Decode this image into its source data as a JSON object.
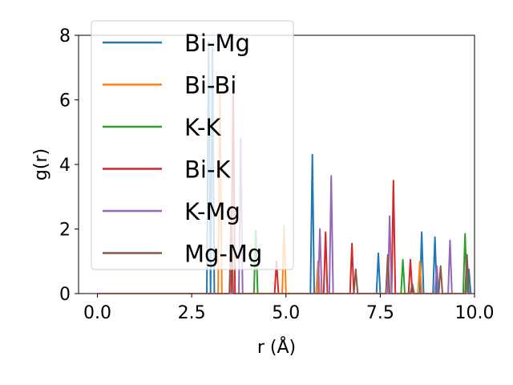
{
  "chart_data": {
    "type": "line",
    "xlabel": "r (Å)",
    "ylabel": "g(r)",
    "xlim": [
      -0.5,
      10.0
    ],
    "ylim": [
      0,
      8.0
    ],
    "xticks": [
      "0.0",
      "2.5",
      "5.0",
      "7.5",
      "10.0"
    ],
    "xtick_values": [
      0,
      2.5,
      5.0,
      7.5,
      10.0
    ],
    "yticks": [
      "0",
      "2",
      "4",
      "6",
      "8"
    ],
    "ytick_values": [
      0,
      2,
      4,
      6,
      8
    ],
    "grid": false,
    "legend_position": "top-left",
    "series": [
      {
        "name": "Bi-Mg",
        "color": "#1f77b4",
        "peaks": [
          [
            2.95,
            7.8
          ],
          [
            3.05,
            7.6
          ],
          [
            5.7,
            4.3
          ],
          [
            7.45,
            1.25
          ],
          [
            8.6,
            1.9
          ],
          [
            8.95,
            1.75
          ],
          [
            9.85,
            0.75
          ]
        ]
      },
      {
        "name": "Bi-Bi",
        "color": "#ff7f0e",
        "peaks": [
          [
            3.25,
            6.2
          ],
          [
            4.95,
            2.1
          ],
          [
            5.85,
            1.0
          ],
          [
            8.55,
            1.0
          ]
        ]
      },
      {
        "name": "K-K",
        "color": "#2ca02c",
        "peaks": [
          [
            4.2,
            1.95
          ],
          [
            8.1,
            1.05
          ],
          [
            9.75,
            1.85
          ]
        ]
      },
      {
        "name": "Bi-K",
        "color": "#d62728",
        "peaks": [
          [
            3.6,
            6.3
          ],
          [
            4.75,
            1.0
          ],
          [
            6.05,
            1.9
          ],
          [
            6.75,
            1.55
          ],
          [
            7.85,
            3.5
          ],
          [
            8.3,
            1.05
          ]
        ]
      },
      {
        "name": "K-Mg",
        "color": "#9467bd",
        "peaks": [
          [
            3.8,
            4.8
          ],
          [
            5.9,
            2.0
          ],
          [
            6.2,
            3.65
          ],
          [
            7.75,
            2.4
          ],
          [
            9.0,
            0.85
          ],
          [
            9.35,
            1.65
          ]
        ]
      },
      {
        "name": "Mg-Mg",
        "color": "#8c564b",
        "peaks": [
          [
            3.55,
            2.6
          ],
          [
            6.85,
            0.75
          ],
          [
            7.7,
            1.2
          ],
          [
            8.35,
            0.3
          ],
          [
            9.1,
            0.85
          ],
          [
            9.8,
            1.2
          ]
        ]
      }
    ]
  }
}
